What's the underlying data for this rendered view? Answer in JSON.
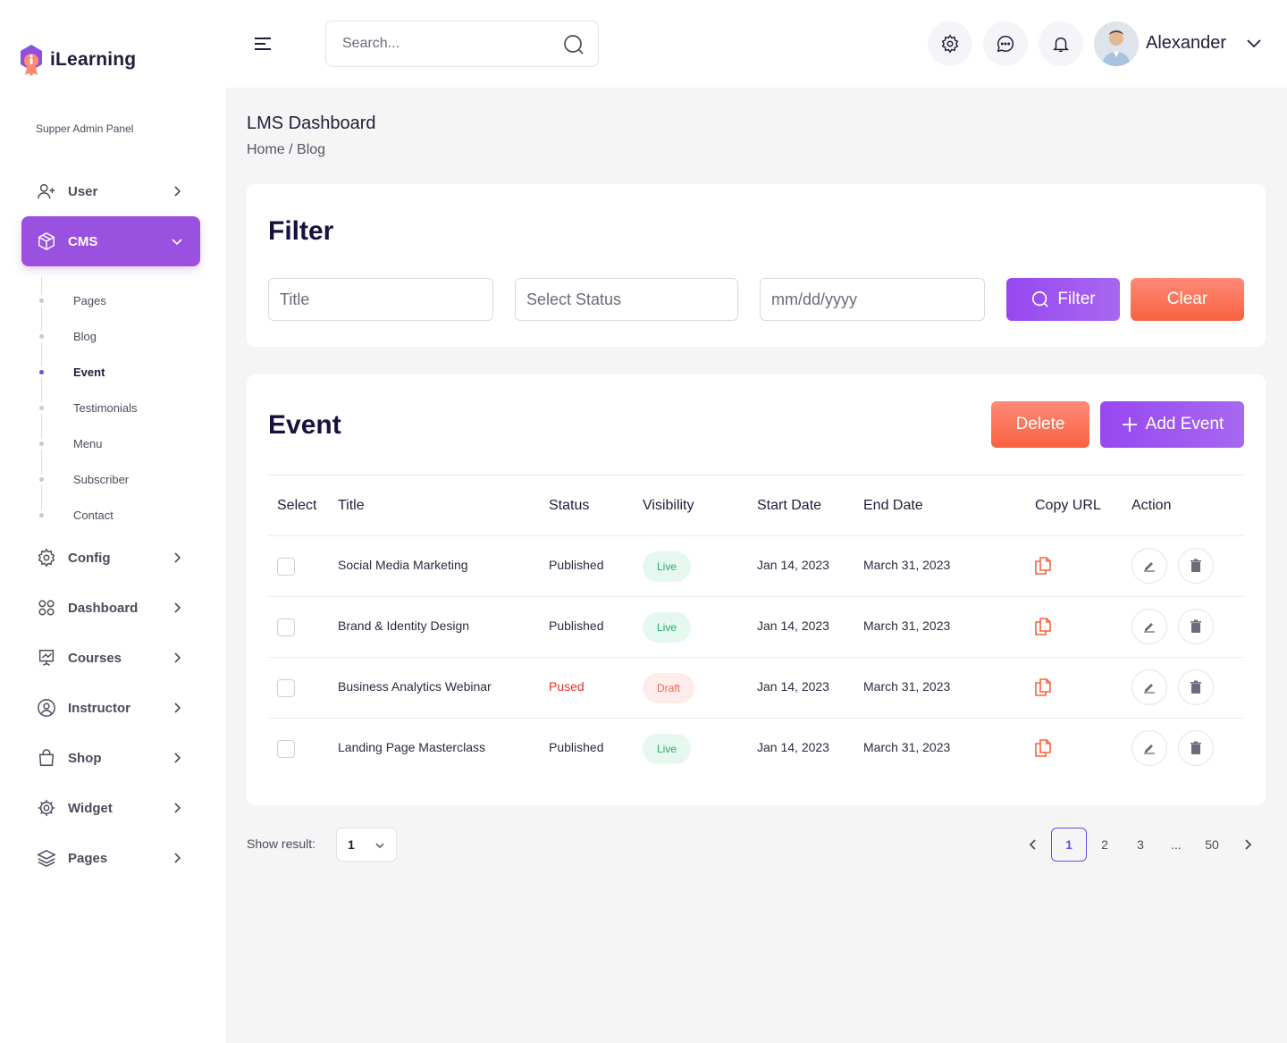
{
  "brand": {
    "name": "iLearning"
  },
  "sidebar": {
    "panel_label": "Supper Admin Panel",
    "items": [
      {
        "label": "User",
        "icon": "user-plus-icon"
      },
      {
        "label": "CMS",
        "icon": "box-icon",
        "active": true
      },
      {
        "label": "Config",
        "icon": "gear-icon"
      },
      {
        "label": "Dashboard",
        "icon": "grid-icon"
      },
      {
        "label": "Courses",
        "icon": "presentation-icon"
      },
      {
        "label": "Instructor",
        "icon": "user-circle-icon"
      },
      {
        "label": "Shop",
        "icon": "shopping-bag-icon"
      },
      {
        "label": "Widget",
        "icon": "cog-wheel-icon"
      },
      {
        "label": "Pages",
        "icon": "layers-icon"
      }
    ],
    "cms_subitems": [
      {
        "label": "Pages"
      },
      {
        "label": "Blog"
      },
      {
        "label": "Event",
        "active": true
      },
      {
        "label": "Testimonials"
      },
      {
        "label": "Menu"
      },
      {
        "label": "Subscriber"
      },
      {
        "label": "Contact"
      }
    ]
  },
  "header": {
    "search_placeholder": "Search...",
    "user_name": "Alexander"
  },
  "page": {
    "title": "LMS Dashboard",
    "breadcrumb": "Home / Blog"
  },
  "filter": {
    "title": "Filter",
    "title_placeholder": "Title",
    "status_placeholder": "Select Status",
    "date_placeholder": "mm/dd/yyyy",
    "filter_label": "Filter",
    "clear_label": "Clear"
  },
  "events": {
    "title": "Event",
    "delete_label": "Delete",
    "add_label": "Add Event",
    "columns": [
      "Select",
      "Title",
      "Status",
      "Visibility",
      "Start Date",
      "End Date",
      "Copy URL",
      "Action"
    ],
    "rows": [
      {
        "title": "Social Media Marketing",
        "status": "Published",
        "visibility": "Live",
        "start": "Jan 14, 2023",
        "end": "March 31, 2023"
      },
      {
        "title": "Brand & Identity Design",
        "status": "Published",
        "visibility": "Live",
        "start": "Jan 14, 2023",
        "end": "March 31, 2023"
      },
      {
        "title": "Business Analytics Webinar",
        "status": "Pused",
        "visibility": "Draft",
        "start": "Jan 14, 2023",
        "end": "March 31, 2023"
      },
      {
        "title": "Landing Page Masterclass",
        "status": "Published",
        "visibility": "Live",
        "start": "Jan 14, 2023",
        "end": "March 31, 2023"
      }
    ]
  },
  "pagination": {
    "show_result_label": "Show result:",
    "per_page_value": "1",
    "pages": [
      "1",
      "2",
      "3",
      "...",
      "50"
    ],
    "current": "1"
  },
  "colors": {
    "accent": "#9b51e0",
    "coral": "#f8623f",
    "live": "#22b06b",
    "draft": "#f06a57",
    "paused": "#e5322d"
  }
}
